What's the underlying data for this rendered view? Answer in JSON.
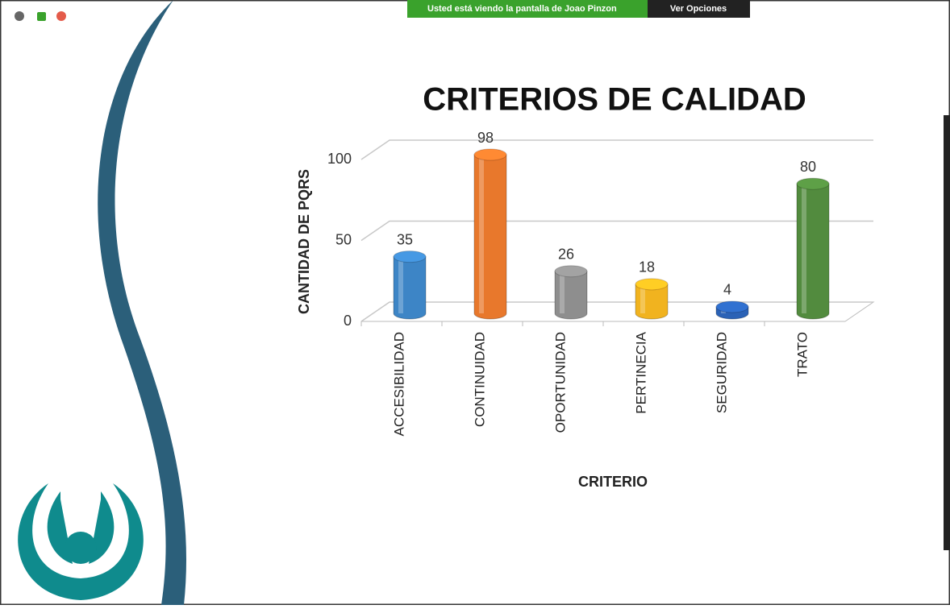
{
  "banner": {
    "text": "Usted está viendo la pantalla de Joao Pinzon",
    "button": "Ver Opciones"
  },
  "chart_data": {
    "type": "bar3d",
    "title": "CRITERIOS DE CALIDAD",
    "y_label": "CANTIDAD DE PQRS",
    "x_label": "CRITERIO",
    "categories": [
      "ACCESIBILIDAD",
      "CONTINUIDAD",
      "OPORTUNIDAD",
      "PERTINECIA",
      "SEGURIDAD",
      "TRATO"
    ],
    "values": [
      35,
      98,
      26,
      18,
      4,
      80
    ],
    "colors": [
      "#3d85c6",
      "#e8782c",
      "#8e8e8e",
      "#f1b31f",
      "#2b62b6",
      "#528b3e"
    ],
    "ylim": [
      0,
      100
    ],
    "yticks": [
      0,
      50,
      100
    ],
    "grid": true
  }
}
